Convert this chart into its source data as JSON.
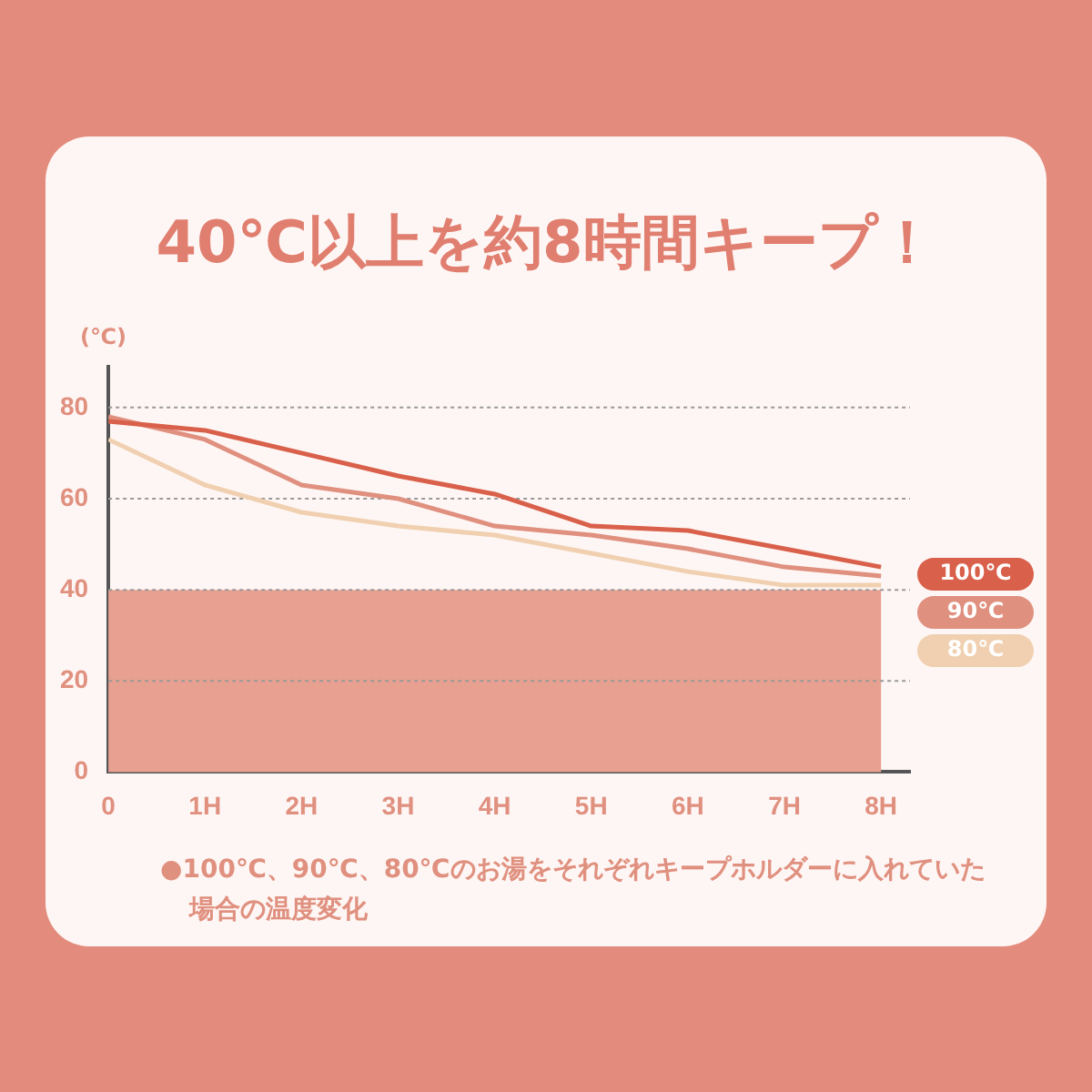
{
  "chart_data": {
    "type": "line",
    "title": "40℃以上を約8時間キープ！",
    "ylabel": "(℃)",
    "x": [
      0,
      1,
      2,
      3,
      4,
      5,
      6,
      7,
      8
    ],
    "xlim": [
      0,
      8.3
    ],
    "xticks": [
      0,
      {
        "value": 1,
        "label": "1H"
      },
      {
        "value": 2,
        "label": "2H"
      },
      {
        "value": 3,
        "label": "3H"
      },
      {
        "value": 4,
        "label": "4H"
      },
      {
        "value": 5,
        "label": "5H"
      },
      {
        "value": 6,
        "label": "6H"
      },
      {
        "value": 7,
        "label": "7H"
      },
      {
        "value": 8,
        "label": "8H"
      }
    ],
    "ylim": [
      0,
      89
    ],
    "yticks": [
      0,
      20,
      40,
      60,
      80
    ],
    "series": [
      {
        "name": "100℃",
        "color": "#d9604a",
        "values": [
          77,
          75,
          70,
          65,
          61,
          54,
          53,
          49,
          45
        ]
      },
      {
        "name": "90℃",
        "color": "#e0907f",
        "values": [
          78,
          73,
          63,
          60,
          54,
          52,
          49,
          45,
          43
        ]
      },
      {
        "name": "80℃",
        "color": "#f0d0b0",
        "values": [
          73,
          63,
          57,
          54,
          52,
          48,
          44,
          41,
          41
        ]
      }
    ],
    "bands": [
      {
        "axis": "y",
        "from": 0,
        "to": 40,
        "color": "#e8a090"
      }
    ],
    "grid": "y",
    "legend": "right",
    "marker": "none",
    "line_style": "solid",
    "annotations": [
      "●100℃、90℃、80℃のお湯をそれぞれキープホルダーに入れていた場合の温度変化"
    ]
  }
}
